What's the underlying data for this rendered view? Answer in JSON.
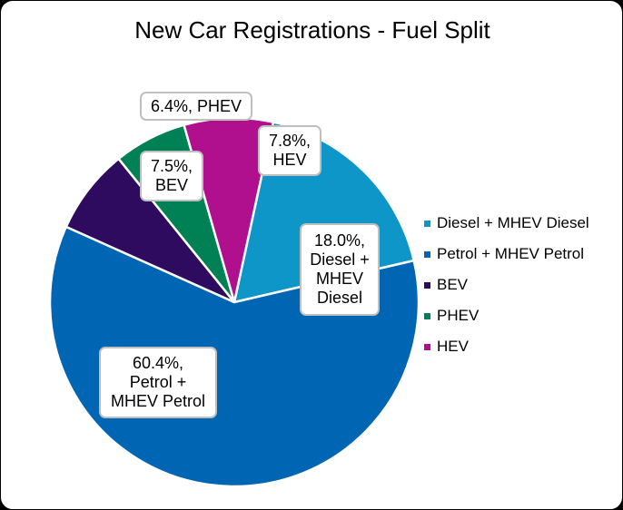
{
  "chart_data": {
    "type": "pie",
    "title": "New Car Registrations - Fuel Split",
    "legend_position": "right",
    "slices": [
      {
        "name": "Diesel + MHEV Diesel",
        "value": 18.0,
        "color": "#0F96C8",
        "label": "18.0%, Diesel + MHEV Diesel"
      },
      {
        "name": "Petrol + MHEV Petrol",
        "value": 60.4,
        "color": "#0066B3",
        "label": "60.4%, Petrol + MHEV Petrol"
      },
      {
        "name": "BEV",
        "value": 7.5,
        "color": "#2E0B5E",
        "label": "7.5%, BEV"
      },
      {
        "name": "PHEV",
        "value": 6.4,
        "color": "#008055",
        "label": "6.4%, PHEV"
      },
      {
        "name": "HEV",
        "value": 7.8,
        "color": "#B0108E",
        "label": "7.8%, HEV"
      }
    ]
  }
}
